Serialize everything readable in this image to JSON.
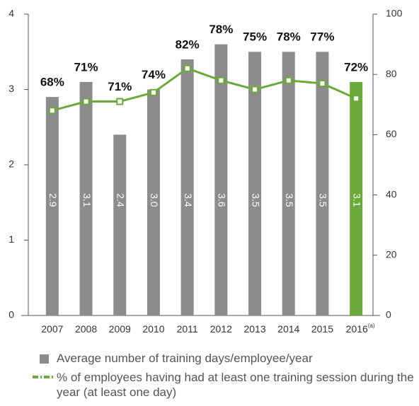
{
  "chart_data": {
    "type": "bar_line",
    "categories": [
      "2007",
      "2008",
      "2009",
      "2010",
      "2011",
      "2012",
      "2013",
      "2014",
      "2015",
      "2016"
    ],
    "category_superscripts": [
      null,
      null,
      null,
      null,
      null,
      null,
      null,
      null,
      null,
      "(a)"
    ],
    "series": [
      {
        "name": "Average number of training days/employee/year",
        "type": "bar",
        "color": "#8c8c8c",
        "colors": [
          "#8c8c8c",
          "#8c8c8c",
          "#8c8c8c",
          "#8c8c8c",
          "#8c8c8c",
          "#8c8c8c",
          "#8c8c8c",
          "#8c8c8c",
          "#8c8c8c",
          "#6aaa3a"
        ],
        "values": [
          2.9,
          3.1,
          2.4,
          3.0,
          3.4,
          3.6,
          3.5,
          3.5,
          3.5,
          3.1
        ],
        "value_labels": [
          "2.9",
          "3.1",
          "2.4",
          "3.0",
          "3.4",
          "3.6",
          "3.5",
          "3.5",
          "3.5",
          "3.1"
        ]
      },
      {
        "name": "% of employees having had at least one training session during the year (at least one day)",
        "type": "line",
        "axis": "y2",
        "color": "#6aaa3a",
        "values": [
          68,
          71,
          71,
          74,
          82,
          78,
          75,
          78,
          77,
          72
        ],
        "value_labels": [
          "68%",
          "71%",
          "71%",
          "74%",
          "82%",
          "78%",
          "75%",
          "78%",
          "77%",
          "72%"
        ]
      }
    ],
    "ylim": [
      0,
      4
    ],
    "yticks": [
      0,
      1,
      2,
      3,
      4
    ],
    "y2lim": [
      0,
      100
    ],
    "y2ticks": [
      0,
      20,
      40,
      60,
      80,
      100
    ]
  }
}
